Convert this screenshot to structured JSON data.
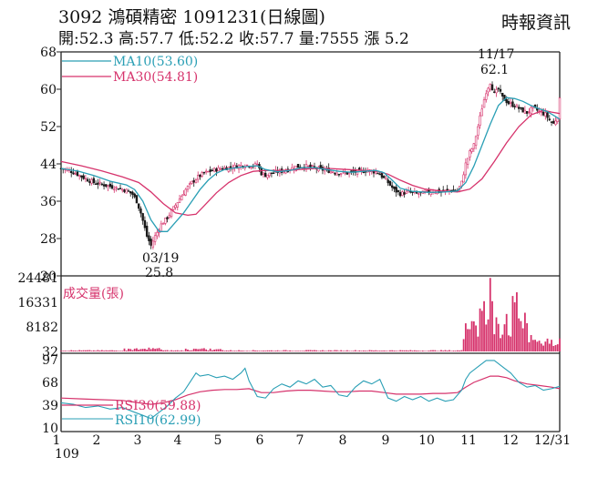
{
  "header": {
    "title": "3092  鴻碩精密 1091231(日線圖)",
    "quote": "開:52.3 高:57.7 低:52.2 收:57.7 量:7555 漲 5.2",
    "source": "時報資訊"
  },
  "chart_data": [
    {
      "type": "candlestick",
      "panel": "price",
      "ylim": [
        20,
        68
      ],
      "yticks": [
        "68",
        "60",
        "52",
        "44",
        "36",
        "28",
        "20"
      ],
      "series": [
        {
          "name": "MA10(53.60)",
          "color": "#2a9fb5"
        },
        {
          "name": "MA30(54.81)",
          "color": "#d6336c"
        }
      ],
      "annotations": {
        "high_date": "11/17",
        "high_value": "62.1",
        "low_date": "03/19",
        "low_value": "25.8"
      },
      "close": [
        [
          0,
          43
        ],
        [
          4,
          42.6
        ],
        [
          8,
          41.8
        ],
        [
          12,
          40.8
        ],
        [
          16,
          40
        ],
        [
          20,
          39.6
        ],
        [
          24,
          39.2
        ],
        [
          28,
          38.8
        ],
        [
          32,
          38.3
        ],
        [
          35,
          37.5
        ],
        [
          37,
          36
        ],
        [
          39,
          33.5
        ],
        [
          42,
          28.5
        ],
        [
          44,
          26.5
        ],
        [
          46,
          28.5
        ],
        [
          49,
          31
        ],
        [
          52,
          32.5
        ],
        [
          55,
          34.5
        ],
        [
          58,
          36.5
        ],
        [
          61,
          38.5
        ],
        [
          64,
          40
        ],
        [
          67,
          41.2
        ],
        [
          70,
          42
        ],
        [
          74,
          42.6
        ],
        [
          78,
          43
        ],
        [
          82,
          43.2
        ],
        [
          86,
          43.5
        ],
        [
          90,
          43.8
        ],
        [
          94,
          43.6
        ],
        [
          96,
          44
        ],
        [
          98,
          42
        ],
        [
          100,
          41.6
        ],
        [
          105,
          42.2
        ],
        [
          110,
          42.6
        ],
        [
          115,
          43.4
        ],
        [
          120,
          43.5
        ],
        [
          125,
          43
        ],
        [
          130,
          42.6
        ],
        [
          135,
          42.2
        ],
        [
          140,
          42
        ],
        [
          145,
          42.3
        ],
        [
          150,
          42.6
        ],
        [
          155,
          42.2
        ],
        [
          160,
          40
        ],
        [
          163,
          38.4
        ],
        [
          166,
          37.6
        ],
        [
          170,
          38
        ],
        [
          174,
          37.6
        ],
        [
          178,
          37.8
        ],
        [
          182,
          38.2
        ],
        [
          186,
          38
        ],
        [
          190,
          38.4
        ],
        [
          194,
          38.2
        ],
        [
          196,
          40
        ],
        [
          198,
          44
        ],
        [
          200,
          46.5
        ],
        [
          202,
          48
        ],
        [
          204,
          52
        ],
        [
          206,
          56
        ],
        [
          208,
          59.5
        ],
        [
          210,
          61.5
        ],
        [
          212,
          59
        ],
        [
          214,
          60
        ],
        [
          216,
          58.2
        ],
        [
          219,
          57
        ],
        [
          222,
          56.5
        ],
        [
          225,
          55.6
        ],
        [
          228,
          55
        ],
        [
          231,
          56
        ],
        [
          234,
          55.2
        ],
        [
          237,
          54.6
        ],
        [
          239,
          53.4
        ],
        [
          241,
          52.6
        ],
        [
          243,
          54.2
        ],
        [
          244,
          57.7
        ]
      ],
      "ma10": [
        [
          0,
          43
        ],
        [
          8,
          42.5
        ],
        [
          16,
          41.5
        ],
        [
          24,
          40.3
        ],
        [
          32,
          39.5
        ],
        [
          36,
          38.5
        ],
        [
          40,
          36
        ],
        [
          44,
          32
        ],
        [
          48,
          29.5
        ],
        [
          52,
          29.5
        ],
        [
          56,
          31.5
        ],
        [
          60,
          33.5
        ],
        [
          64,
          36
        ],
        [
          68,
          38.5
        ],
        [
          72,
          40.5
        ],
        [
          76,
          42
        ],
        [
          80,
          42.8
        ],
        [
          86,
          43.2
        ],
        [
          92,
          43.5
        ],
        [
          96,
          43.6
        ],
        [
          100,
          42.8
        ],
        [
          106,
          42.3
        ],
        [
          112,
          42.6
        ],
        [
          118,
          43.2
        ],
        [
          124,
          43.2
        ],
        [
          130,
          42.8
        ],
        [
          136,
          42.4
        ],
        [
          142,
          42.2
        ],
        [
          148,
          42.4
        ],
        [
          154,
          42.6
        ],
        [
          158,
          42.1
        ],
        [
          162,
          40.5
        ],
        [
          166,
          38.8
        ],
        [
          172,
          38.1
        ],
        [
          180,
          37.9
        ],
        [
          188,
          38
        ],
        [
          194,
          38.2
        ],
        [
          198,
          40
        ],
        [
          202,
          43.5
        ],
        [
          206,
          48
        ],
        [
          210,
          52.5
        ],
        [
          214,
          56.5
        ],
        [
          218,
          58.2
        ],
        [
          222,
          58
        ],
        [
          226,
          57.4
        ],
        [
          230,
          56.5
        ],
        [
          234,
          55.8
        ],
        [
          238,
          55.2
        ],
        [
          241,
          54.4
        ],
        [
          244,
          53.6
        ]
      ],
      "ma30": [
        [
          0,
          44.5
        ],
        [
          10,
          43.6
        ],
        [
          20,
          42.5
        ],
        [
          30,
          41.2
        ],
        [
          38,
          40
        ],
        [
          44,
          38
        ],
        [
          50,
          35.5
        ],
        [
          56,
          33.5
        ],
        [
          62,
          33
        ],
        [
          66,
          33.2
        ],
        [
          70,
          35
        ],
        [
          76,
          37.8
        ],
        [
          82,
          40
        ],
        [
          88,
          41.5
        ],
        [
          94,
          42.4
        ],
        [
          100,
          42.6
        ],
        [
          108,
          42.6
        ],
        [
          116,
          42.8
        ],
        [
          124,
          43
        ],
        [
          132,
          43
        ],
        [
          140,
          42.8
        ],
        [
          148,
          42.6
        ],
        [
          154,
          42.5
        ],
        [
          160,
          41.8
        ],
        [
          166,
          40.5
        ],
        [
          172,
          39.4
        ],
        [
          178,
          38.6
        ],
        [
          186,
          38.2
        ],
        [
          194,
          38
        ],
        [
          200,
          38.6
        ],
        [
          206,
          40.8
        ],
        [
          212,
          44.5
        ],
        [
          218,
          48.5
        ],
        [
          224,
          52
        ],
        [
          230,
          54.5
        ],
        [
          236,
          55.5
        ],
        [
          240,
          55.1
        ],
        [
          244,
          54.8
        ]
      ]
    },
    {
      "type": "bar",
      "panel": "volume",
      "ylim": [
        32,
        24481
      ],
      "yticks": [
        "24481",
        "16331",
        "8182",
        "32"
      ],
      "series": [
        {
          "name": "成交量(張)",
          "color": "#d6336c"
        }
      ]
    },
    {
      "type": "line",
      "panel": "rsi",
      "ylim": [
        10,
        97
      ],
      "yticks": [
        "97",
        "68",
        "39",
        "10"
      ],
      "series": [
        {
          "name": "RSI30(59.88)",
          "color": "#d6336c"
        },
        {
          "name": "RSI10(62.99)",
          "color": "#2a9fb5"
        }
      ],
      "rsi30": [
        [
          0,
          48
        ],
        [
          10,
          47
        ],
        [
          20,
          46
        ],
        [
          30,
          45
        ],
        [
          38,
          42
        ],
        [
          44,
          40
        ],
        [
          50,
          42
        ],
        [
          56,
          46
        ],
        [
          62,
          52
        ],
        [
          68,
          56
        ],
        [
          74,
          58
        ],
        [
          80,
          59
        ],
        [
          86,
          59
        ],
        [
          92,
          60
        ],
        [
          98,
          55
        ],
        [
          104,
          55
        ],
        [
          110,
          57
        ],
        [
          116,
          58
        ],
        [
          122,
          58
        ],
        [
          128,
          57
        ],
        [
          134,
          56
        ],
        [
          140,
          56
        ],
        [
          146,
          57
        ],
        [
          152,
          57
        ],
        [
          158,
          55
        ],
        [
          164,
          53
        ],
        [
          170,
          53
        ],
        [
          176,
          53
        ],
        [
          182,
          54
        ],
        [
          188,
          54
        ],
        [
          194,
          55
        ],
        [
          198,
          62
        ],
        [
          202,
          68
        ],
        [
          206,
          72
        ],
        [
          210,
          76
        ],
        [
          214,
          76
        ],
        [
          218,
          74
        ],
        [
          222,
          70
        ],
        [
          228,
          66
        ],
        [
          234,
          64
        ],
        [
          240,
          62
        ],
        [
          244,
          60
        ]
      ],
      "rsi10": [
        [
          0,
          42
        ],
        [
          6,
          40
        ],
        [
          12,
          36
        ],
        [
          18,
          38
        ],
        [
          24,
          34
        ],
        [
          30,
          36
        ],
        [
          36,
          30
        ],
        [
          40,
          26
        ],
        [
          44,
          22
        ],
        [
          48,
          30
        ],
        [
          52,
          38
        ],
        [
          56,
          48
        ],
        [
          60,
          56
        ],
        [
          62,
          64
        ],
        [
          64,
          72
        ],
        [
          66,
          80
        ],
        [
          68,
          76
        ],
        [
          72,
          78
        ],
        [
          76,
          74
        ],
        [
          80,
          76
        ],
        [
          84,
          72
        ],
        [
          88,
          80
        ],
        [
          90,
          86
        ],
        [
          92,
          70
        ],
        [
          96,
          50
        ],
        [
          100,
          48
        ],
        [
          104,
          60
        ],
        [
          108,
          66
        ],
        [
          112,
          62
        ],
        [
          116,
          70
        ],
        [
          120,
          66
        ],
        [
          124,
          72
        ],
        [
          128,
          62
        ],
        [
          132,
          64
        ],
        [
          136,
          52
        ],
        [
          140,
          50
        ],
        [
          144,
          62
        ],
        [
          148,
          70
        ],
        [
          152,
          66
        ],
        [
          156,
          72
        ],
        [
          158,
          60
        ],
        [
          160,
          48
        ],
        [
          164,
          44
        ],
        [
          168,
          50
        ],
        [
          172,
          46
        ],
        [
          176,
          50
        ],
        [
          180,
          44
        ],
        [
          184,
          48
        ],
        [
          188,
          44
        ],
        [
          192,
          46
        ],
        [
          196,
          58
        ],
        [
          198,
          72
        ],
        [
          200,
          80
        ],
        [
          204,
          88
        ],
        [
          208,
          96
        ],
        [
          212,
          96
        ],
        [
          216,
          88
        ],
        [
          220,
          80
        ],
        [
          224,
          68
        ],
        [
          228,
          62
        ],
        [
          232,
          64
        ],
        [
          236,
          58
        ],
        [
          240,
          60
        ],
        [
          244,
          63
        ]
      ]
    }
  ],
  "x_axis": {
    "labels": [
      "1",
      "2",
      "3",
      "4",
      "5",
      "6",
      "7",
      "8",
      "9",
      "10",
      "11",
      "12",
      "12/31"
    ],
    "sublabel": "109"
  }
}
